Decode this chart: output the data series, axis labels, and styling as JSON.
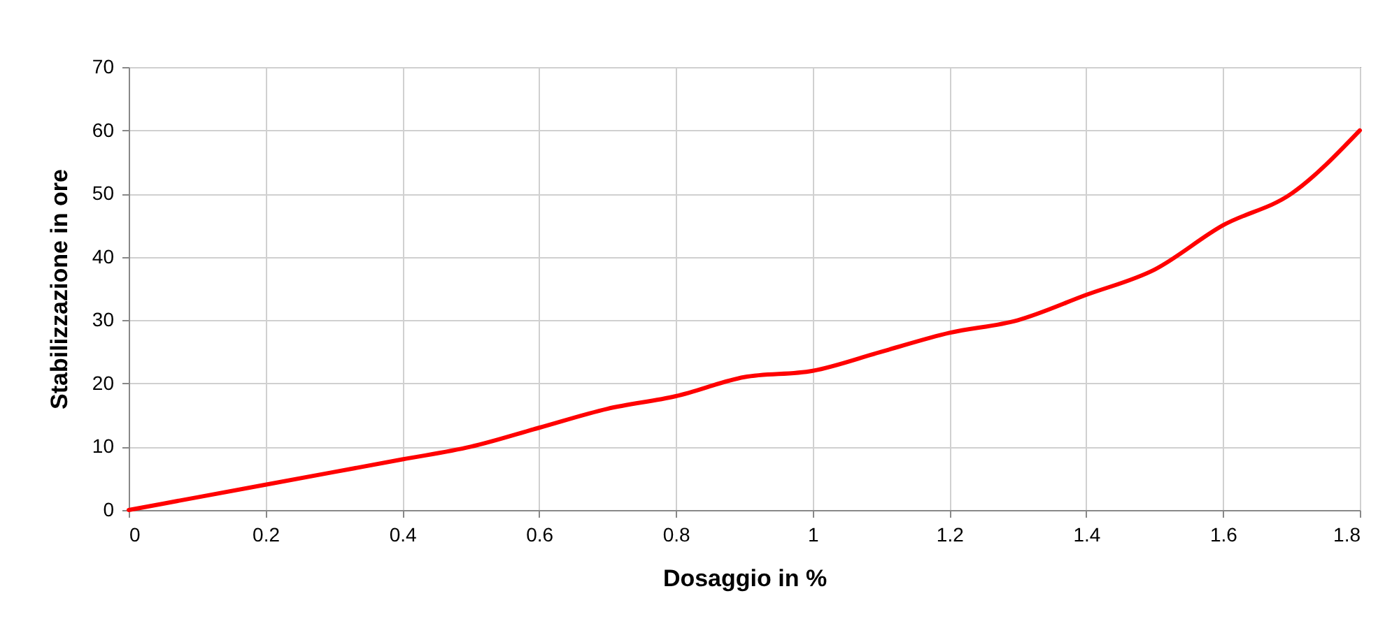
{
  "chart_data": {
    "type": "line",
    "xlabel": "Dosaggio in %",
    "ylabel": "Stabilizzazione in ore",
    "x": [
      0,
      0.1,
      0.2,
      0.3,
      0.4,
      0.5,
      0.6,
      0.7,
      0.8,
      0.9,
      1.0,
      1.1,
      1.2,
      1.3,
      1.4,
      1.5,
      1.6,
      1.7,
      1.8
    ],
    "series": [
      {
        "color": "#ff0000",
        "values": [
          0,
          2,
          4,
          6,
          8,
          10,
          13,
          16,
          18,
          21,
          22,
          25,
          28,
          30,
          34,
          38,
          45,
          50,
          60
        ]
      }
    ],
    "xlim": [
      0,
      1.8
    ],
    "xticks": [
      0,
      0.2,
      0.4,
      0.6,
      0.8,
      1,
      1.2,
      1.4,
      1.6,
      1.8
    ],
    "ylim": [
      0,
      70
    ],
    "yticks": [
      0,
      10,
      20,
      30,
      40,
      50,
      60,
      70
    ],
    "grid": true,
    "line_style": "solid",
    "marker": "none"
  }
}
